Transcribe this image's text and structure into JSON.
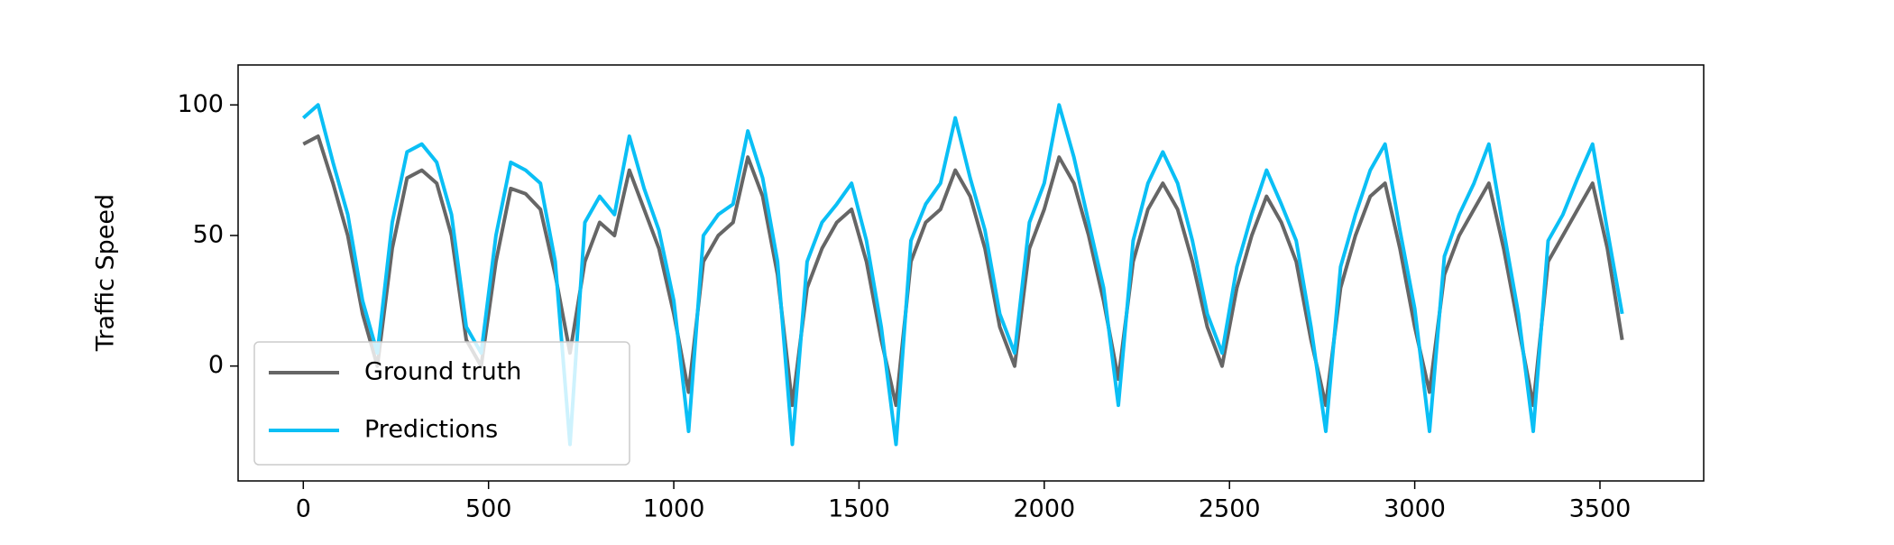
{
  "chart_data": {
    "type": "line",
    "ylabel": "Traffic Speed",
    "x": [
      0,
      40,
      80,
      120,
      160,
      200,
      240,
      280,
      320,
      360,
      400,
      440,
      480,
      520,
      560,
      600,
      640,
      680,
      720,
      760,
      800,
      840,
      880,
      920,
      960,
      1000,
      1040,
      1080,
      1120,
      1160,
      1200,
      1240,
      1280,
      1320,
      1360,
      1400,
      1440,
      1480,
      1520,
      1560,
      1600,
      1640,
      1680,
      1720,
      1760,
      1800,
      1840,
      1880,
      1920,
      1960,
      2000,
      2040,
      2080,
      2120,
      2160,
      2200,
      2240,
      2280,
      2320,
      2360,
      2400,
      2440,
      2480,
      2520,
      2560,
      2600,
      2640,
      2680,
      2720,
      2760,
      2800,
      2840,
      2880,
      2920,
      2960,
      3000,
      3040,
      3080,
      3120,
      3160,
      3200,
      3240,
      3280,
      3320,
      3360,
      3400,
      3440,
      3480,
      3520,
      3560
    ],
    "series": [
      {
        "name": "Ground truth",
        "color": "#666666",
        "values": [
          85,
          88,
          70,
          50,
          20,
          0,
          45,
          72,
          75,
          70,
          50,
          10,
          0,
          40,
          68,
          66,
          60,
          35,
          5,
          40,
          55,
          50,
          75,
          60,
          45,
          20,
          -10,
          40,
          50,
          55,
          80,
          65,
          35,
          -15,
          30,
          45,
          55,
          60,
          40,
          10,
          -15,
          40,
          55,
          60,
          75,
          65,
          45,
          15,
          0,
          45,
          60,
          80,
          70,
          50,
          25,
          -5,
          40,
          60,
          70,
          60,
          40,
          15,
          0,
          30,
          50,
          65,
          55,
          40,
          10,
          -15,
          30,
          50,
          65,
          70,
          45,
          15,
          -10,
          35,
          50,
          60,
          70,
          45,
          15,
          -15,
          40,
          50,
          60,
          70,
          45,
          10
        ]
      },
      {
        "name": "Predictions",
        "color": "#0abff5",
        "values": [
          95,
          100,
          78,
          58,
          25,
          5,
          55,
          82,
          85,
          78,
          58,
          15,
          5,
          50,
          78,
          75,
          70,
          40,
          -30,
          55,
          65,
          58,
          88,
          68,
          52,
          25,
          -25,
          50,
          58,
          62,
          90,
          72,
          40,
          -30,
          40,
          55,
          62,
          70,
          48,
          15,
          -30,
          48,
          62,
          70,
          95,
          72,
          52,
          20,
          5,
          55,
          70,
          100,
          80,
          55,
          30,
          -15,
          48,
          70,
          82,
          70,
          48,
          20,
          5,
          38,
          58,
          75,
          62,
          48,
          15,
          -25,
          38,
          58,
          75,
          85,
          52,
          22,
          -25,
          42,
          58,
          70,
          85,
          52,
          20,
          -25,
          48,
          58,
          72,
          85,
          52,
          20
        ]
      }
    ],
    "xlim": [
      -176,
      3780
    ],
    "ylim": [
      -44,
      115.3
    ],
    "xticks": [
      0,
      500,
      1000,
      1500,
      2000,
      2500,
      3000,
      3500
    ],
    "yticks": [
      0,
      50,
      100
    ],
    "legend": "lower left"
  }
}
